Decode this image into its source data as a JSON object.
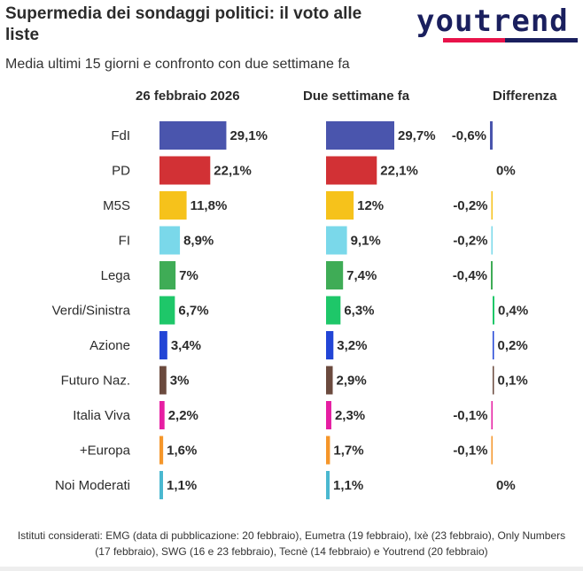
{
  "header": {
    "title": "Supermedia dei sondaggi politici: il voto alle liste",
    "subtitle": "Media ultimi 15 giorni e confronto con due settimane fa",
    "logo_text": "youtrend"
  },
  "columns": {
    "current": "26 febbraio 2026",
    "previous": "Due settimane fa",
    "diff": "Differenza"
  },
  "chart_data": {
    "type": "bar",
    "categories": [
      "FdI",
      "PD",
      "M5S",
      "FI",
      "Lega",
      "Verdi/Sinistra",
      "Azione",
      "Futuro Naz.",
      "Italia Viva",
      "+Europa",
      "Noi Moderati"
    ],
    "series": [
      {
        "name": "26 febbraio 2026",
        "values": [
          29.1,
          22.1,
          11.8,
          8.9,
          7,
          6.7,
          3.4,
          3,
          2.2,
          1.6,
          1.1
        ],
        "labels": [
          "29,1%",
          "22,1%",
          "11,8%",
          "8,9%",
          "7%",
          "6,7%",
          "3,4%",
          "3%",
          "2,2%",
          "1,6%",
          "1,1%"
        ]
      },
      {
        "name": "Due settimane fa",
        "values": [
          29.7,
          22.1,
          12,
          9.1,
          7.4,
          6.3,
          3.2,
          2.9,
          2.3,
          1.7,
          1.1
        ],
        "labels": [
          "29,7%",
          "22,1%",
          "12%",
          "9,1%",
          "7,4%",
          "6,3%",
          "3,2%",
          "2,9%",
          "2,3%",
          "1,7%",
          "1,1%"
        ]
      },
      {
        "name": "Differenza",
        "values": [
          -0.6,
          0,
          -0.2,
          -0.2,
          -0.4,
          0.4,
          0.2,
          0.1,
          -0.1,
          -0.1,
          0
        ],
        "labels": [
          "-0,6%",
          "0%",
          "-0,2%",
          "-0,2%",
          "-0,4%",
          "0,4%",
          "0,2%",
          "0,1%",
          "-0,1%",
          "-0,1%",
          "0%"
        ]
      }
    ],
    "colors": [
      "#4a55ad",
      "#d23135",
      "#f6c21b",
      "#7ad8ea",
      "#3fac56",
      "#1ec769",
      "#2245d6",
      "#6b4a3e",
      "#e61ea2",
      "#f5962a",
      "#4ab8d0"
    ],
    "xlim": [
      0,
      30
    ]
  },
  "footnote": "Istituti considerati: EMG (data di pubblicazione: 20 febbraio), Eumetra (19 febbraio), Ixè (23 febbraio), Only Numbers (17 febbraio), SWG (16 e 23 febbraio), Tecnè (14 febbraio) e Youtrend (20 febbraio)"
}
